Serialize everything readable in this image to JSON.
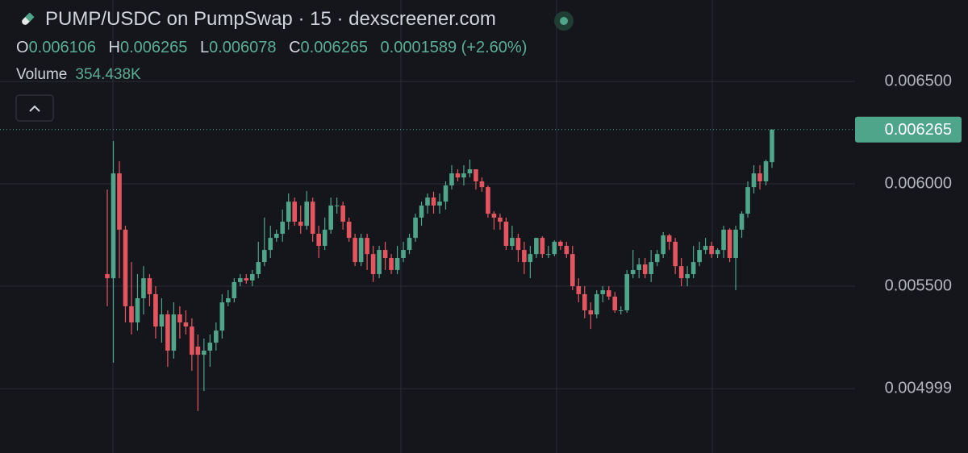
{
  "chart_data": {
    "type": "candlestick",
    "title": "PUMP/USDC on PumpSwap · 15 · dexscreener.com",
    "legend": [
      {
        "label": "O",
        "value": 0.006106
      },
      {
        "label": "H",
        "value": 0.006265
      },
      {
        "label": "L",
        "value": 0.006078
      },
      {
        "label": "C",
        "value": 0.006265
      }
    ],
    "change": 0.0001589,
    "change_pct": "(+2.60%)",
    "volume_label": "Volume",
    "volume": "354.438K",
    "last_price": 0.006265,
    "up_color": "#4fa58a",
    "down_color": "#e5555f",
    "ylim": [
      0.004685,
      0.006898
    ],
    "yticks": [
      {
        "value": 0.0065,
        "label": "0.006500"
      },
      {
        "value": 0.006,
        "label": "0.006000"
      },
      {
        "value": 0.0055,
        "label": "0.005500"
      },
      0.004999
    ],
    "grid": true,
    "open": [
      0.005559,
      0.005539,
      0.006051,
      0.005776,
      0.005402,
      0.005323,
      0.005441,
      0.005539,
      0.005461,
      0.005303,
      0.005362,
      0.005185,
      0.005362,
      0.005323,
      0.005303,
      0.005205,
      0.005165,
      0.005185,
      0.005224,
      0.005283,
      0.005421,
      0.005441,
      0.00552,
      0.005539,
      0.005528,
      0.005559,
      0.005618,
      0.005677,
      0.005736,
      0.005756,
      0.005815,
      0.005913,
      0.005815,
      0.005795,
      0.005913,
      0.005756,
      0.005697,
      0.005776,
      0.005894,
      0.005894,
      0.005815,
      0.005736,
      0.005618,
      0.005736,
      0.005657,
      0.005559,
      0.005677,
      0.005638,
      0.005579,
      0.005638,
      0.005677,
      0.005736,
      0.005835,
      0.005894,
      0.005933,
      0.005894,
      0.005913,
      0.005992,
      0.006051,
      0.006031,
      0.006051,
      0.006071,
      0.006012,
      0.005984,
      0.005854,
      0.005835,
      0.005815,
      0.005697,
      0.005736,
      0.005677,
      0.005618,
      0.005657,
      0.005736,
      0.005657,
      0.005657,
      0.005717,
      0.005697,
      0.005657,
      0.0055,
      0.005461,
      0.005382,
      0.005362,
      0.005461,
      0.00548,
      0.005449,
      0.005382,
      0.005382,
      0.005559,
      0.005579,
      0.005606,
      0.005559,
      0.005618,
      0.005657,
      0.005748,
      0.005717,
      0.005598,
      0.005539,
      0.005559,
      0.005618,
      0.005677,
      0.005697,
      0.005657,
      0.005677,
      0.005776,
      0.005638,
      0.005776,
      0.005854,
      0.005984,
      0.006051,
      0.006012,
      0.006106
    ],
    "high": [
      0.005972,
      0.006209,
      0.00611,
      0.005795,
      0.005618,
      0.005559,
      0.005598,
      0.005559,
      0.0055,
      0.005441,
      0.005382,
      0.005421,
      0.005402,
      0.005382,
      0.005343,
      0.005264,
      0.005244,
      0.005264,
      0.005323,
      0.005461,
      0.00548,
      0.005539,
      0.005559,
      0.005559,
      0.005579,
      0.005717,
      0.005835,
      0.005795,
      0.005776,
      0.005874,
      0.005953,
      0.005933,
      0.005894,
      0.005965,
      0.005933,
      0.005795,
      0.005835,
      0.005933,
      0.005933,
      0.005913,
      0.005835,
      0.005756,
      0.005756,
      0.005756,
      0.005697,
      0.005697,
      0.005717,
      0.005657,
      0.005697,
      0.005717,
      0.005756,
      0.005854,
      0.005913,
      0.005953,
      0.005961,
      0.005953,
      0.006012,
      0.006091,
      0.006071,
      0.006091,
      0.006118,
      0.006071,
      0.006031,
      0.005992,
      0.005866,
      0.005854,
      0.005835,
      0.005795,
      0.005756,
      0.005717,
      0.005697,
      0.005736,
      0.005744,
      0.005697,
      0.005724,
      0.005724,
      0.005717,
      0.005697,
      0.005539,
      0.0055,
      0.005421,
      0.00548,
      0.0055,
      0.0055,
      0.005472,
      0.005402,
      0.005579,
      0.005677,
      0.005638,
      0.005638,
      0.005677,
      0.005677,
      0.005764,
      0.005756,
      0.005736,
      0.005638,
      0.005598,
      0.005697,
      0.005717,
      0.005736,
      0.005717,
      0.005685,
      0.005795,
      0.005783,
      0.005795,
      0.005866,
      0.006012,
      0.006091,
      0.006091,
      0.006118,
      0.006265
    ],
    "low": [
      0.005402,
      0.005126,
      0.005539,
      0.005323,
      0.005264,
      0.005283,
      0.005362,
      0.005402,
      0.005244,
      0.005224,
      0.005106,
      0.005146,
      0.005244,
      0.005264,
      0.005087,
      0.00489,
      0.004988,
      0.005106,
      0.005185,
      0.005244,
      0.005402,
      0.005421,
      0.0055,
      0.005512,
      0.0055,
      0.005539,
      0.005598,
      0.005638,
      0.005717,
      0.005717,
      0.005776,
      0.005795,
      0.005756,
      0.005776,
      0.005717,
      0.005638,
      0.005677,
      0.005756,
      0.005854,
      0.005776,
      0.005717,
      0.005598,
      0.005598,
      0.005579,
      0.00552,
      0.005539,
      0.005579,
      0.005559,
      0.005559,
      0.005618,
      0.005657,
      0.005717,
      0.005795,
      0.005854,
      0.005854,
      0.005854,
      0.005874,
      0.005972,
      0.006012,
      0.005992,
      0.006031,
      0.005972,
      0.005961,
      0.005835,
      0.005776,
      0.005776,
      0.005677,
      0.005677,
      0.005618,
      0.005559,
      0.005539,
      0.005638,
      0.005638,
      0.005638,
      0.005646,
      0.005677,
      0.005638,
      0.00548,
      0.005421,
      0.005343,
      0.005291,
      0.005343,
      0.005421,
      0.005433,
      0.00537,
      0.005362,
      0.00537,
      0.005539,
      0.005539,
      0.005539,
      0.00552,
      0.005598,
      0.005638,
      0.005677,
      0.005559,
      0.0055,
      0.0055,
      0.005539,
      0.005598,
      0.005657,
      0.005638,
      0.005638,
      0.005638,
      0.005618,
      0.00548,
      0.005736,
      0.005835,
      0.005953,
      0.005972,
      0.005992,
      0.006078
    ],
    "close": [
      0.005539,
      0.006051,
      0.005776,
      0.005402,
      0.005323,
      0.005441,
      0.005539,
      0.005461,
      0.005303,
      0.005362,
      0.005185,
      0.005362,
      0.005323,
      0.005303,
      0.005165,
      0.005165,
      0.005185,
      0.005224,
      0.005283,
      0.005421,
      0.005441,
      0.00552,
      0.005539,
      0.005528,
      0.005559,
      0.005618,
      0.005677,
      0.005736,
      0.005756,
      0.005815,
      0.005913,
      0.005815,
      0.005795,
      0.005913,
      0.005756,
      0.005697,
      0.005776,
      0.005894,
      0.005894,
      0.005815,
      0.005736,
      0.005618,
      0.005736,
      0.005657,
      0.005559,
      0.005677,
      0.005638,
      0.005579,
      0.005638,
      0.005677,
      0.005736,
      0.005835,
      0.005894,
      0.005933,
      0.005894,
      0.005913,
      0.005992,
      0.006051,
      0.006031,
      0.006051,
      0.006071,
      0.006012,
      0.005984,
      0.005854,
      0.005835,
      0.005815,
      0.005697,
      0.005736,
      0.005677,
      0.005618,
      0.005657,
      0.005736,
      0.005657,
      0.005657,
      0.005717,
      0.005697,
      0.005657,
      0.0055,
      0.005461,
      0.005382,
      0.005362,
      0.005461,
      0.00548,
      0.005449,
      0.005382,
      0.005382,
      0.005559,
      0.005579,
      0.005606,
      0.005559,
      0.005618,
      0.005657,
      0.005748,
      0.005717,
      0.005598,
      0.005539,
      0.005559,
      0.005618,
      0.005677,
      0.005697,
      0.005657,
      0.005677,
      0.005776,
      0.005638,
      0.005776,
      0.005854,
      0.005984,
      0.006051,
      0.006012,
      0.00611,
      0.006265
    ]
  }
}
